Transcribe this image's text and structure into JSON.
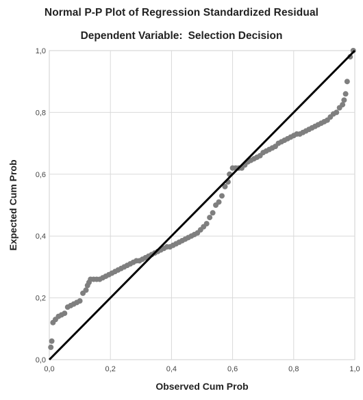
{
  "chart_data": {
    "type": "scatter",
    "title": "Normal P-P Plot of Regression Standardized Residual",
    "subtitle_label": "Dependent Variable:",
    "subtitle_value": "Selection Decision",
    "xlabel": "Observed Cum Prob",
    "ylabel": "Expected Cum Prob",
    "xlim": [
      0,
      1
    ],
    "ylim": [
      0,
      1
    ],
    "xticks": [
      "0,0",
      "0,2",
      "0,4",
      "0,6",
      "0,8",
      "1,0"
    ],
    "yticks": [
      "0,0",
      "0,2",
      "0,4",
      "0,6",
      "0,8",
      "1,0"
    ],
    "grid": true,
    "reference_line": {
      "x": [
        0,
        1
      ],
      "y": [
        0,
        1
      ]
    },
    "point_color": "#7f7f7f",
    "line_color": "#000000",
    "points": [
      [
        0.005,
        0.04
      ],
      [
        0.008,
        0.06
      ],
      [
        0.012,
        0.12
      ],
      [
        0.02,
        0.13
      ],
      [
        0.03,
        0.14
      ],
      [
        0.04,
        0.145
      ],
      [
        0.05,
        0.15
      ],
      [
        0.06,
        0.17
      ],
      [
        0.07,
        0.175
      ],
      [
        0.08,
        0.18
      ],
      [
        0.09,
        0.185
      ],
      [
        0.1,
        0.19
      ],
      [
        0.11,
        0.215
      ],
      [
        0.12,
        0.225
      ],
      [
        0.125,
        0.24
      ],
      [
        0.13,
        0.25
      ],
      [
        0.135,
        0.26
      ],
      [
        0.145,
        0.26
      ],
      [
        0.155,
        0.26
      ],
      [
        0.165,
        0.26
      ],
      [
        0.175,
        0.265
      ],
      [
        0.185,
        0.27
      ],
      [
        0.195,
        0.275
      ],
      [
        0.205,
        0.28
      ],
      [
        0.215,
        0.285
      ],
      [
        0.225,
        0.29
      ],
      [
        0.235,
        0.295
      ],
      [
        0.245,
        0.3
      ],
      [
        0.255,
        0.305
      ],
      [
        0.265,
        0.31
      ],
      [
        0.275,
        0.315
      ],
      [
        0.285,
        0.32
      ],
      [
        0.295,
        0.32
      ],
      [
        0.305,
        0.325
      ],
      [
        0.315,
        0.33
      ],
      [
        0.325,
        0.335
      ],
      [
        0.335,
        0.34
      ],
      [
        0.345,
        0.345
      ],
      [
        0.355,
        0.35
      ],
      [
        0.365,
        0.355
      ],
      [
        0.375,
        0.36
      ],
      [
        0.385,
        0.365
      ],
      [
        0.395,
        0.365
      ],
      [
        0.405,
        0.37
      ],
      [
        0.415,
        0.375
      ],
      [
        0.425,
        0.38
      ],
      [
        0.435,
        0.385
      ],
      [
        0.445,
        0.39
      ],
      [
        0.455,
        0.395
      ],
      [
        0.465,
        0.4
      ],
      [
        0.475,
        0.405
      ],
      [
        0.485,
        0.41
      ],
      [
        0.495,
        0.42
      ],
      [
        0.505,
        0.43
      ],
      [
        0.515,
        0.44
      ],
      [
        0.525,
        0.46
      ],
      [
        0.535,
        0.475
      ],
      [
        0.545,
        0.5
      ],
      [
        0.555,
        0.51
      ],
      [
        0.565,
        0.53
      ],
      [
        0.575,
        0.56
      ],
      [
        0.585,
        0.575
      ],
      [
        0.59,
        0.6
      ],
      [
        0.6,
        0.62
      ],
      [
        0.61,
        0.62
      ],
      [
        0.62,
        0.62
      ],
      [
        0.63,
        0.62
      ],
      [
        0.64,
        0.63
      ],
      [
        0.65,
        0.64
      ],
      [
        0.66,
        0.645
      ],
      [
        0.67,
        0.65
      ],
      [
        0.68,
        0.655
      ],
      [
        0.69,
        0.66
      ],
      [
        0.7,
        0.67
      ],
      [
        0.71,
        0.675
      ],
      [
        0.72,
        0.68
      ],
      [
        0.73,
        0.685
      ],
      [
        0.74,
        0.69
      ],
      [
        0.75,
        0.7
      ],
      [
        0.76,
        0.705
      ],
      [
        0.77,
        0.71
      ],
      [
        0.78,
        0.715
      ],
      [
        0.79,
        0.72
      ],
      [
        0.8,
        0.725
      ],
      [
        0.81,
        0.73
      ],
      [
        0.82,
        0.73
      ],
      [
        0.83,
        0.735
      ],
      [
        0.84,
        0.74
      ],
      [
        0.85,
        0.745
      ],
      [
        0.86,
        0.75
      ],
      [
        0.87,
        0.755
      ],
      [
        0.88,
        0.76
      ],
      [
        0.89,
        0.765
      ],
      [
        0.9,
        0.77
      ],
      [
        0.91,
        0.775
      ],
      [
        0.92,
        0.785
      ],
      [
        0.93,
        0.795
      ],
      [
        0.94,
        0.8
      ],
      [
        0.95,
        0.815
      ],
      [
        0.96,
        0.825
      ],
      [
        0.965,
        0.84
      ],
      [
        0.97,
        0.86
      ],
      [
        0.975,
        0.9
      ],
      [
        0.985,
        0.98
      ],
      [
        0.995,
        1.0
      ]
    ]
  }
}
